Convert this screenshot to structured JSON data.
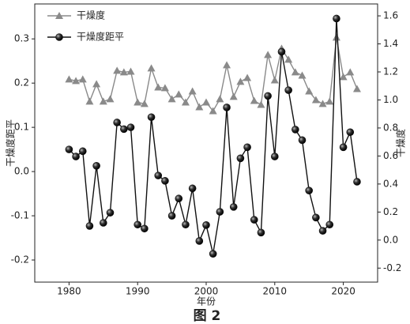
{
  "chart_data": {
    "type": "line",
    "caption": "图 2",
    "x_label": "年份",
    "y_label": "干燥度距平",
    "y2_label": "干燥度",
    "x": [
      1980,
      1981,
      1982,
      1983,
      1984,
      1985,
      1986,
      1987,
      1988,
      1989,
      1990,
      1991,
      1992,
      1993,
      1994,
      1995,
      1996,
      1997,
      1998,
      1999,
      2000,
      2001,
      2002,
      2003,
      2004,
      2005,
      2006,
      2007,
      2008,
      2009,
      2010,
      2011,
      2012,
      2013,
      2014,
      2015,
      2016,
      2017,
      2018,
      2019,
      2020,
      2021,
      2022
    ],
    "xlim": [
      1975,
      2025
    ],
    "xticks": [
      1980,
      1990,
      2000,
      2010,
      2020
    ],
    "ylim": [
      -0.25,
      0.379
    ],
    "yticks": [
      -0.2,
      -0.1,
      {
        "value": 0,
        "label": "0.0"
      },
      0.1,
      0.2,
      0.3
    ],
    "y2lim": [
      -0.3,
      1.685
    ],
    "y2ticks": [
      -0.2,
      {
        "value": 0,
        "label": "0.0"
      },
      0.2,
      0.4,
      0.6,
      0.8,
      {
        "value": 1,
        "label": "1.0"
      },
      1.2,
      1.4,
      1.6
    ],
    "legend": "upper left",
    "series": [
      {
        "name": "干燥度",
        "color": "#8a8a8a",
        "marker": "triangle",
        "axis": "y2",
        "values": [
          1.147,
          1.136,
          1.147,
          0.989,
          1.113,
          0.989,
          1.006,
          1.209,
          1.198,
          1.203,
          0.983,
          0.972,
          1.226,
          1.09,
          1.085,
          1.006,
          1.04,
          0.983,
          1.062,
          0.949,
          0.983,
          0.921,
          1.006,
          1.249,
          1.023,
          1.13,
          1.158,
          0.994,
          0.966,
          1.322,
          1.141,
          1.367,
          1.288,
          1.198,
          1.175,
          1.062,
          1.0,
          0.972,
          0.989,
          1.446,
          1.164,
          1.198,
          1.079
        ]
      },
      {
        "name": "干燥度距平",
        "color": "#111111",
        "marker": "circle",
        "axis": "y",
        "values": [
          0.05,
          0.034,
          0.046,
          -0.123,
          0.013,
          -0.116,
          -0.093,
          0.111,
          0.096,
          0.1,
          -0.12,
          -0.129,
          0.123,
          -0.009,
          -0.021,
          -0.1,
          -0.061,
          -0.12,
          -0.038,
          -0.157,
          -0.121,
          -0.186,
          -0.091,
          0.145,
          -0.08,
          0.03,
          0.055,
          -0.109,
          -0.138,
          0.171,
          0.034,
          0.271,
          0.184,
          0.095,
          0.071,
          -0.043,
          -0.104,
          -0.134,
          -0.12,
          0.346,
          0.055,
          0.089,
          -0.023
        ]
      }
    ]
  }
}
